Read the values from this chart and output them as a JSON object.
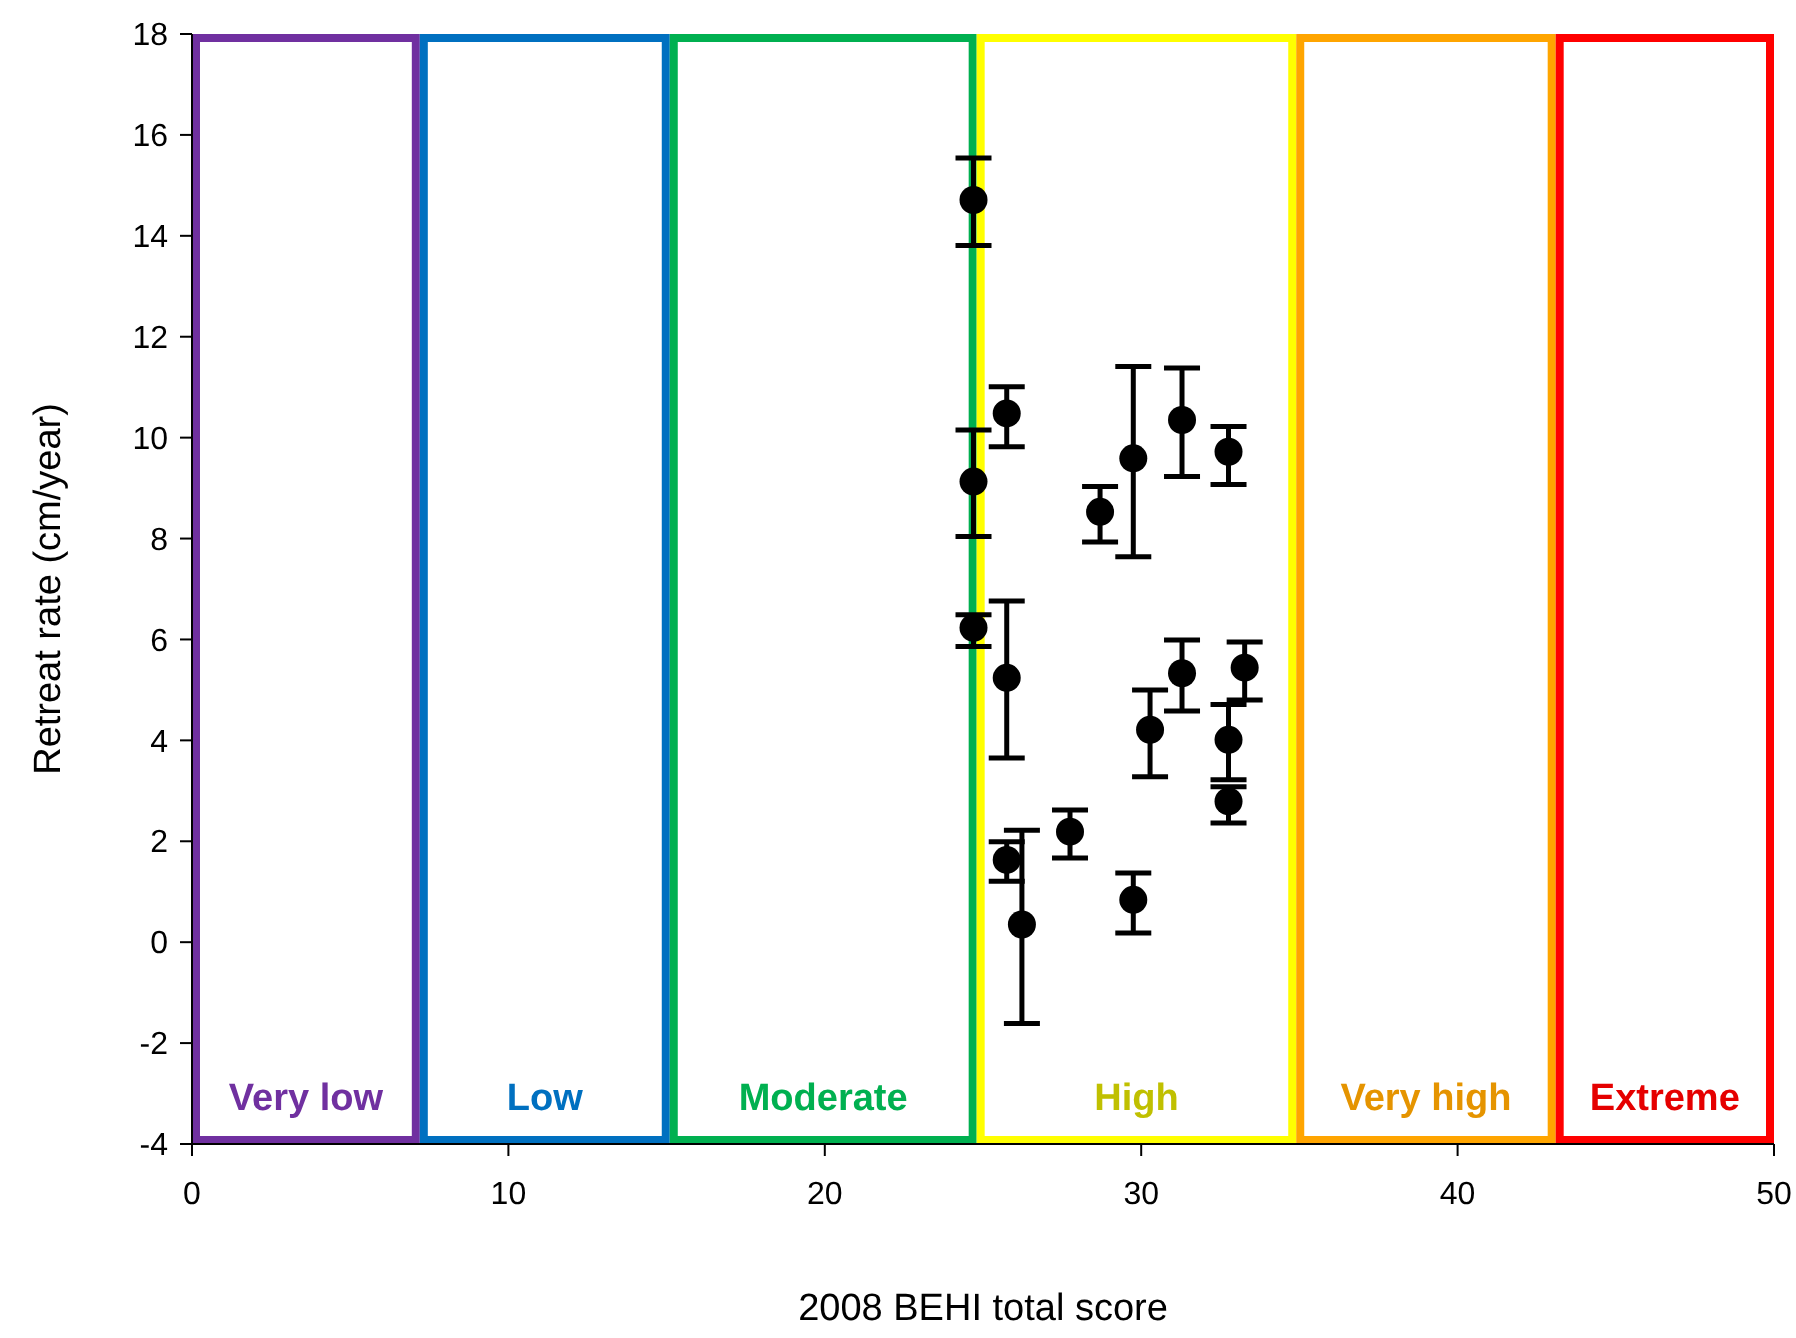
{
  "chart_data": {
    "type": "scatter",
    "xlabel": "2008 BEHI total score",
    "ylabel": "Retreat rate (cm/year)",
    "xlim": [
      0,
      50
    ],
    "xticks": [
      0,
      10,
      20,
      30,
      40,
      50
    ],
    "ylim": [
      -4,
      18
    ],
    "yticks": [
      -4,
      -2,
      0,
      2,
      4,
      6,
      8,
      10,
      12,
      14,
      16,
      18
    ],
    "grid": false,
    "marker": "circle",
    "color": "#000000",
    "x": [
      24.7,
      24.7,
      24.7,
      25.75,
      25.75,
      25.75,
      26.23,
      27.75,
      28.7,
      29.75,
      29.75,
      30.28,
      31.29,
      31.29,
      32.76,
      32.76,
      32.76,
      33.27
    ],
    "values": [
      14.71,
      9.13,
      6.23,
      10.48,
      5.24,
      1.63,
      0.35,
      2.19,
      8.53,
      9.59,
      0.84,
      4.21,
      10.35,
      5.33,
      9.72,
      4.01,
      2.79,
      5.44
    ],
    "errors": [
      [
        13.81,
        15.54
      ],
      [
        8.04,
        10.15
      ],
      [
        5.86,
        6.49
      ],
      [
        9.82,
        11.01
      ],
      [
        3.65,
        6.76
      ],
      [
        1.21,
        1.99
      ],
      [
        -1.61,
        2.22
      ],
      [
        1.67,
        2.62
      ],
      [
        7.93,
        9.03
      ],
      [
        7.64,
        11.41
      ],
      [
        0.18,
        1.37
      ],
      [
        3.28,
        5.0
      ],
      [
        9.23,
        11.38
      ],
      [
        4.58,
        5.99
      ],
      [
        9.07,
        10.22
      ],
      [
        3.22,
        4.71
      ],
      [
        2.36,
        3.08
      ],
      [
        4.8,
        5.95
      ]
    ],
    "bands": [
      {
        "axis": "x",
        "from": 0,
        "to": 7.2,
        "label": "Very low",
        "color": "#7030a0"
      },
      {
        "axis": "x",
        "from": 7.2,
        "to": 15.1,
        "label": "Low",
        "color": "#0070c0"
      },
      {
        "axis": "x",
        "from": 15.1,
        "to": 24.8,
        "label": "Moderate",
        "color": "#00b050"
      },
      {
        "axis": "x",
        "from": 24.8,
        "to": 34.9,
        "label": "High",
        "color": "#ffff00"
      },
      {
        "axis": "x",
        "from": 34.9,
        "to": 43.1,
        "label": "Very high",
        "color": "#ffa500"
      },
      {
        "axis": "x",
        "from": 43.1,
        "to": 50,
        "label": "Extreme",
        "color": "#ff0000"
      }
    ]
  }
}
